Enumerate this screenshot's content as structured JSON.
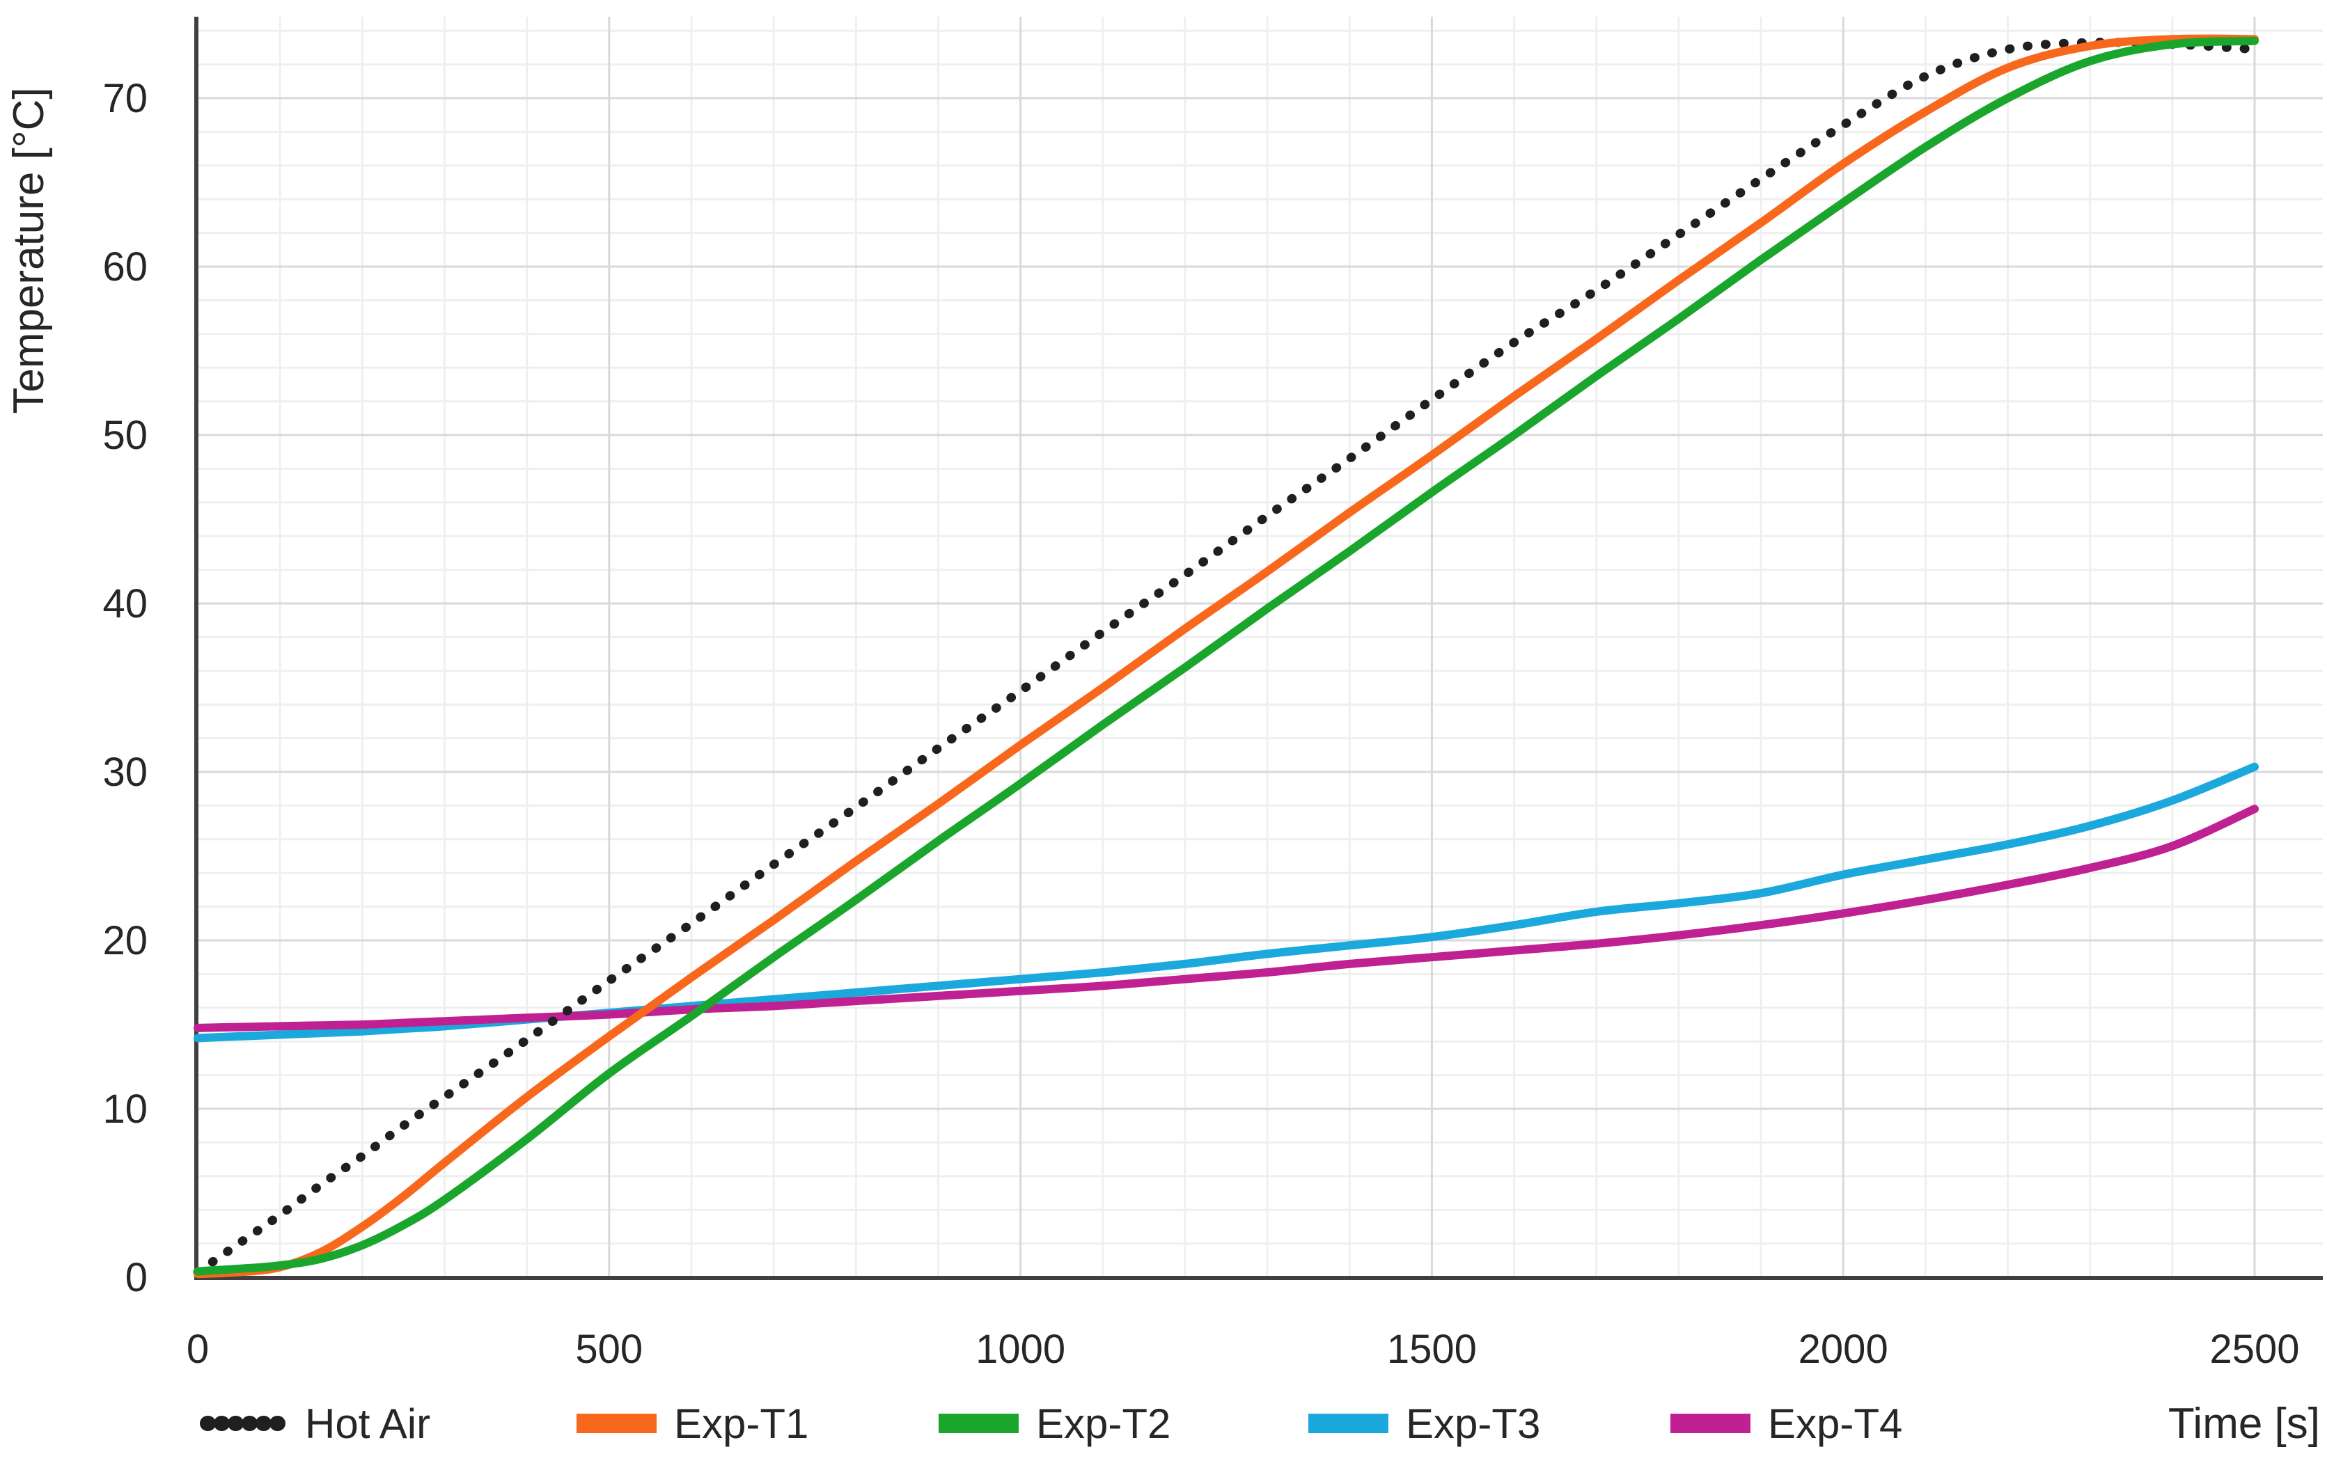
{
  "chart_data": {
    "type": "line",
    "title": "",
    "xlabel": "Time [s]",
    "ylabel": "Temperature [°C]",
    "xlim": [
      0,
      2580
    ],
    "ylim": [
      0,
      74.8
    ],
    "x_ticks": [
      0,
      500,
      1000,
      1500,
      2000,
      2500
    ],
    "y_ticks": [
      0,
      10,
      20,
      30,
      40,
      50,
      60,
      70
    ],
    "minor_grid_step": {
      "x": 100,
      "y": 2
    },
    "grid": true,
    "legend_position": "bottom",
    "x": [
      0,
      50,
      100,
      150,
      200,
      250,
      300,
      400,
      500,
      600,
      700,
      800,
      900,
      1000,
      1100,
      1200,
      1300,
      1400,
      1500,
      1600,
      1700,
      1800,
      1900,
      2000,
      2100,
      2200,
      2300,
      2400,
      2500
    ],
    "series": [
      {
        "name": "Hot Air",
        "style": "dotted",
        "color": "#1f1f1f",
        "values": [
          0.3,
          2.0,
          3.7,
          5.5,
          7.2,
          9.0,
          10.7,
          14.1,
          17.6,
          21.0,
          24.5,
          27.9,
          31.4,
          34.8,
          38.3,
          41.7,
          45.2,
          48.6,
          52.1,
          55.5,
          58.6,
          61.9,
          65.2,
          68.4,
          71.3,
          72.9,
          73.3,
          73.2,
          72.9
        ]
      },
      {
        "name": "Exp-T1",
        "style": "solid",
        "color": "#F8681C",
        "values": [
          0.2,
          0.3,
          0.6,
          1.5,
          3.0,
          4.8,
          6.8,
          10.7,
          14.3,
          17.8,
          21.2,
          24.7,
          28.1,
          31.6,
          35.0,
          38.5,
          41.9,
          45.4,
          48.8,
          52.3,
          55.7,
          59.2,
          62.6,
          66.1,
          69.2,
          71.8,
          73.1,
          73.5,
          73.5
        ]
      },
      {
        "name": "Exp-T2",
        "style": "solid",
        "color": "#1AA52C",
        "values": [
          0.35,
          0.5,
          0.7,
          1.1,
          1.9,
          3.1,
          4.6,
          8.2,
          12.1,
          15.5,
          19.0,
          22.4,
          25.9,
          29.3,
          32.8,
          36.2,
          39.7,
          43.1,
          46.6,
          50.0,
          53.5,
          56.9,
          60.4,
          63.8,
          67.1,
          70.0,
          72.2,
          73.2,
          73.4
        ]
      },
      {
        "name": "Exp-T3",
        "style": "solid",
        "color": "#1BA8DC",
        "values": [
          14.2,
          14.3,
          14.4,
          14.5,
          14.6,
          14.75,
          14.9,
          15.3,
          15.7,
          16.1,
          16.5,
          16.9,
          17.3,
          17.7,
          18.1,
          18.6,
          19.2,
          19.7,
          20.2,
          20.9,
          21.7,
          22.2,
          22.8,
          23.9,
          24.8,
          25.7,
          26.8,
          28.3,
          30.3
        ]
      },
      {
        "name": "Exp-T4",
        "style": "solid",
        "color": "#BF2192",
        "values": [
          14.8,
          14.85,
          14.9,
          14.95,
          15.0,
          15.1,
          15.2,
          15.4,
          15.6,
          15.9,
          16.1,
          16.4,
          16.7,
          17.0,
          17.3,
          17.7,
          18.1,
          18.6,
          19.0,
          19.4,
          19.8,
          20.3,
          20.9,
          21.6,
          22.4,
          23.3,
          24.3,
          25.6,
          27.8
        ]
      }
    ]
  },
  "colors": {
    "background": "#ffffff",
    "axis": "#3f3f3f",
    "grid_minor": "#efefef",
    "grid_major": "#d9d9d9",
    "text": "#262626"
  }
}
